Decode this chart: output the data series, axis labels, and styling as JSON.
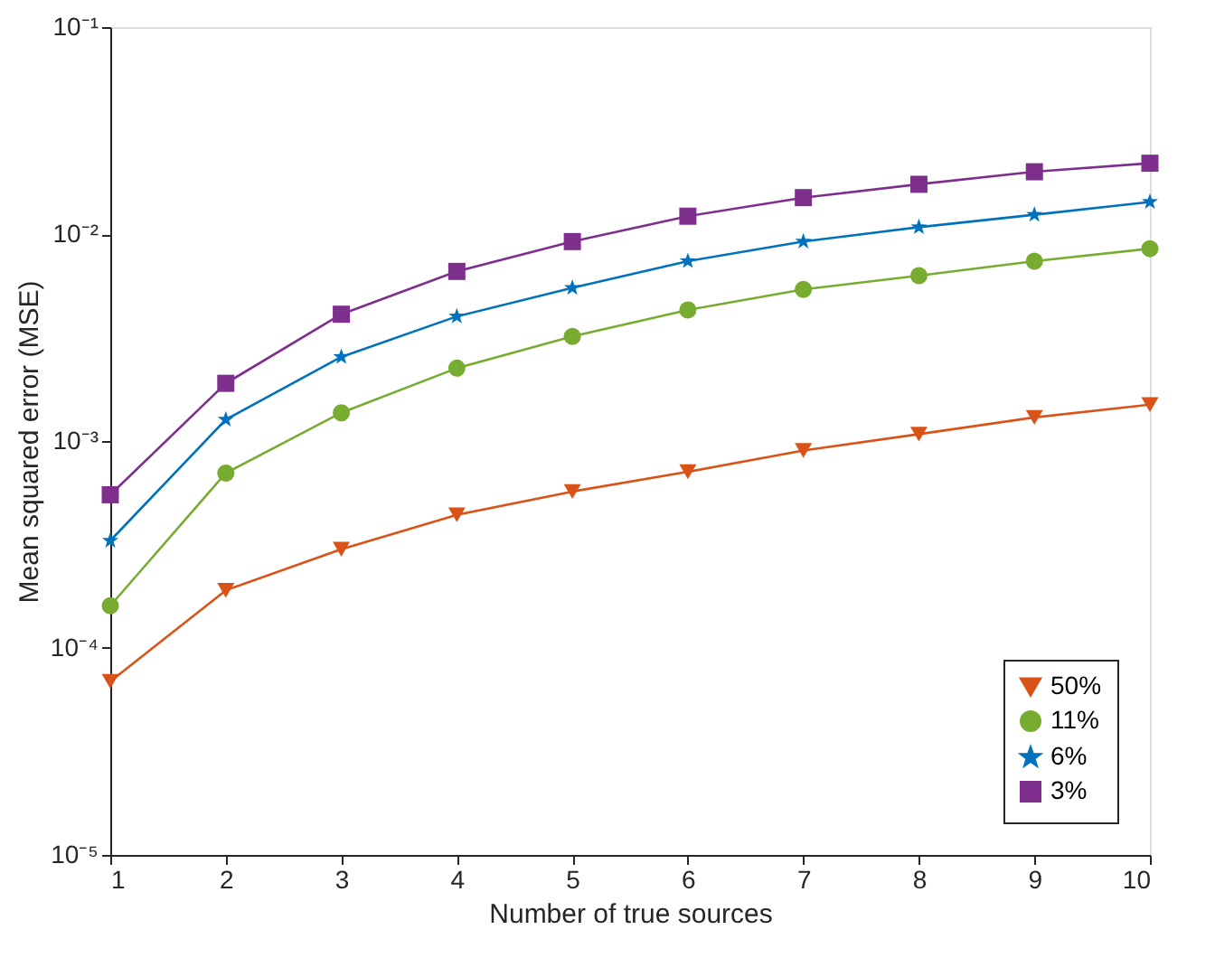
{
  "chart_data": {
    "type": "line",
    "xlabel": "Number of true sources",
    "ylabel": "Mean squared error (MSE)",
    "x": [
      1,
      2,
      3,
      4,
      5,
      6,
      7,
      8,
      9,
      10
    ],
    "xlim": [
      1,
      10
    ],
    "xticks": [
      1,
      2,
      3,
      4,
      5,
      6,
      7,
      8,
      9,
      10
    ],
    "ylim": [
      1e-05,
      0.1
    ],
    "log": true,
    "yticks": [
      {
        "value": 1e-05,
        "label": "10⁻⁵"
      },
      {
        "value": 0.0001,
        "label": "10⁻⁴"
      },
      {
        "value": 0.001,
        "label": "10⁻³"
      },
      {
        "value": 0.01,
        "label": "10⁻²"
      },
      {
        "value": 0.1,
        "label": "10⁻¹"
      }
    ],
    "grid": false,
    "legend": "bottom right",
    "line_style": "solid",
    "series": [
      {
        "name": "50%",
        "color": "#d95319",
        "marker": "triangle",
        "values": [
          6.9e-05,
          0.00019,
          0.0003,
          0.00044,
          0.00057,
          0.00071,
          0.0009,
          0.00108,
          0.0013,
          0.0015
        ]
      },
      {
        "name": "11%",
        "color": "#77ac30",
        "marker": "circle",
        "values": [
          0.00016,
          0.0007,
          0.00137,
          0.00225,
          0.0032,
          0.0043,
          0.0054,
          0.0063,
          0.0074,
          0.0085
        ]
      },
      {
        "name": "6%",
        "color": "#0072bd",
        "marker": "star",
        "values": [
          0.00033,
          0.00127,
          0.00255,
          0.004,
          0.0055,
          0.0074,
          0.0092,
          0.0108,
          0.0124,
          0.0143
        ]
      },
      {
        "name": "3%",
        "color": "#7e2f8e",
        "marker": "square",
        "values": [
          0.00055,
          0.0019,
          0.0041,
          0.0066,
          0.0092,
          0.0122,
          0.015,
          0.0174,
          0.02,
          0.022
        ]
      }
    ]
  }
}
